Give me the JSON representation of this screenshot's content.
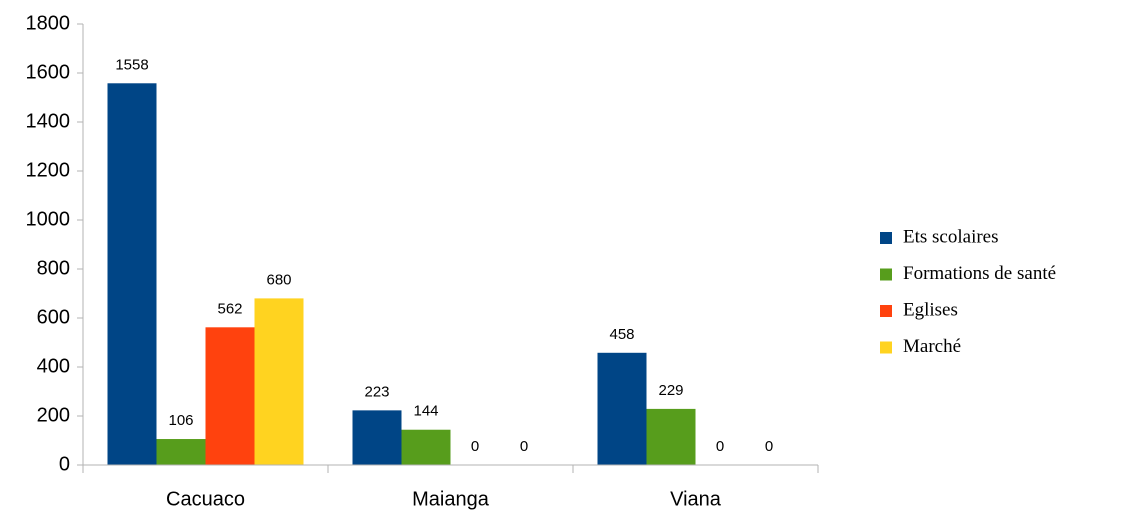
{
  "chart_data": {
    "type": "bar",
    "categories": [
      "Cacuaco",
      "Maianga",
      "Viana"
    ],
    "series": [
      {
        "name": "Ets scolaires",
        "color": "#004586",
        "values": [
          1558,
          223,
          458
        ]
      },
      {
        "name": "Formations de santé",
        "color": "#579d1c",
        "values": [
          106,
          144,
          229
        ]
      },
      {
        "name": "Eglises",
        "color": "#ff420e",
        "values": [
          562,
          0,
          0
        ]
      },
      {
        "name": "Marché",
        "color": "#ffd320",
        "values": [
          680,
          0,
          0
        ]
      }
    ],
    "ylim": [
      0,
      1800
    ],
    "yticks": [
      0,
      200,
      400,
      600,
      800,
      1000,
      1200,
      1400,
      1600,
      1800
    ],
    "grid": false,
    "legend": "right"
  }
}
